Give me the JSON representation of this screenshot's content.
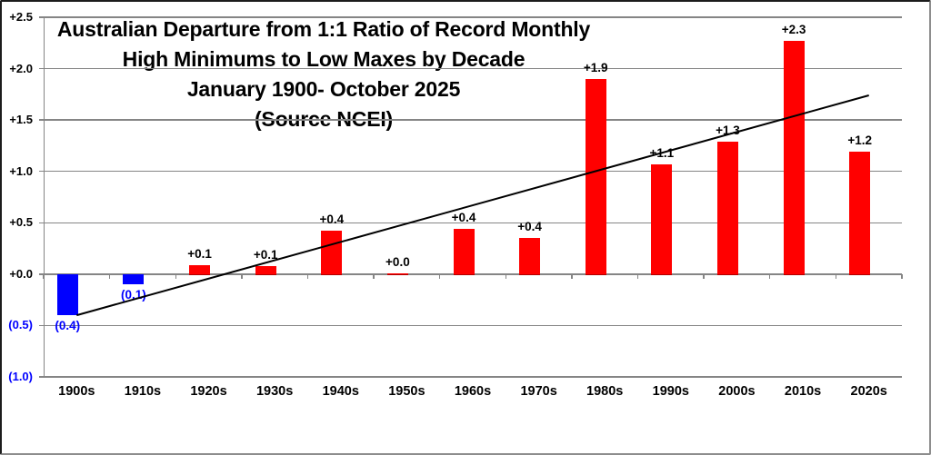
{
  "title_lines": [
    "Australian Departure from 1:1 Ratio of Record Monthly",
    "High Minimums to Low Maxes by Decade",
    "January 1900- October 2025",
    "(Source NCEI)"
  ],
  "chart_data": {
    "type": "bar",
    "title": "Australian Departure from 1:1 Ratio of Record Monthly High Minimums to Low Maxes by Decade January 1900- October 2025 (Source NCEI)",
    "categories": [
      "1900s",
      "1910s",
      "1920s",
      "1930s",
      "1940s",
      "1950s",
      "1960s",
      "1970s",
      "1980s",
      "1990s",
      "2000s",
      "2010s",
      "2020s"
    ],
    "values": [
      -0.4,
      -0.1,
      0.09,
      0.08,
      0.42,
      0.01,
      0.44,
      0.35,
      1.9,
      1.07,
      1.29,
      2.27,
      1.19
    ],
    "bar_labels": [
      "(0.4)",
      "(0.1)",
      "+0.1",
      "+0.1",
      "+0.4",
      "+0.0",
      "+0.4",
      "+0.4",
      "+1.9",
      "+1.1",
      "+1.3",
      "+2.3",
      "+1.2"
    ],
    "y_ticks": [
      {
        "label": "+2.5",
        "value": 2.5
      },
      {
        "label": "+2.0",
        "value": 2.0
      },
      {
        "label": "+1.5",
        "value": 1.5
      },
      {
        "label": "+1.0",
        "value": 1.0
      },
      {
        "label": "+0.5",
        "value": 0.5
      },
      {
        "label": "+0.0",
        "value": 0.0
      },
      {
        "label": "(0.5)",
        "value": -0.5
      },
      {
        "label": "(1.0)",
        "value": -1.0
      }
    ],
    "ylim": [
      -1.0,
      2.5
    ],
    "xlabel": "",
    "ylabel": "",
    "grid": true,
    "legend": false,
    "trendline": {
      "type": "linear",
      "y_start": -0.4,
      "y_end": 1.74
    },
    "colors": {
      "positive_bar": "#ff0000",
      "positive_bar_edge": "#b00000",
      "negative_bar": "#0000ff",
      "negative_text": "#0000ff",
      "positive_text": "#000000",
      "gridline": "#858585",
      "trendline": "#000000"
    }
  }
}
